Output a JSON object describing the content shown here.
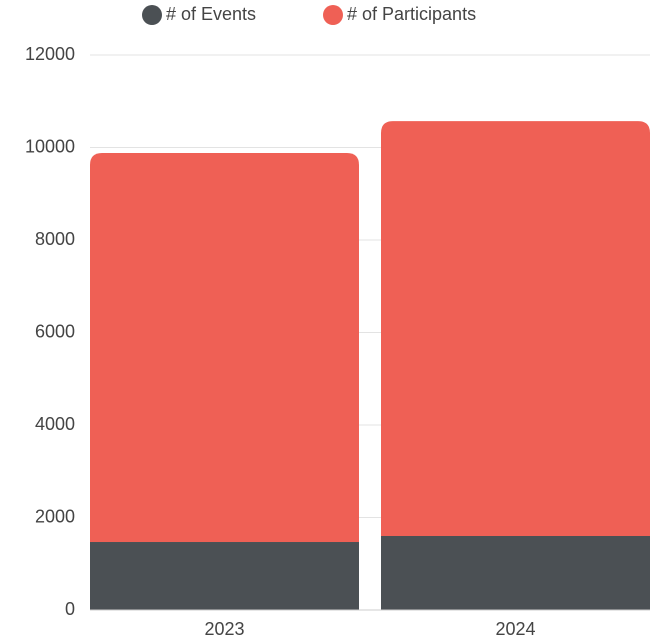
{
  "chart_data": {
    "type": "stacked_bar",
    "categories": [
      "2023",
      "2024"
    ],
    "series": [
      {
        "name": "# of Events",
        "color": "#4b5054",
        "values": [
          1470,
          1600
        ]
      },
      {
        "name": "# of Participants",
        "color": "#ef6055",
        "values": [
          8410,
          8970
        ]
      }
    ],
    "ylim": [
      0,
      12000
    ],
    "yticks": [
      0,
      2000,
      4000,
      6000,
      8000,
      10000,
      12000
    ],
    "grid": true,
    "legend": "top"
  }
}
